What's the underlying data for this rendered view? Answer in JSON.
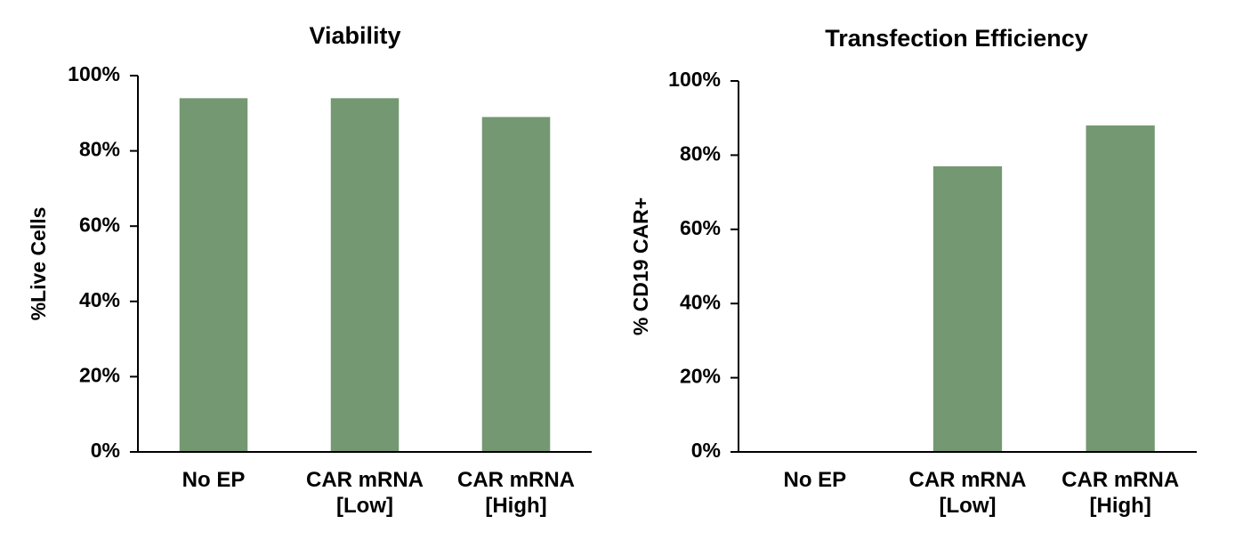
{
  "chart_data": [
    {
      "type": "bar",
      "title": "Viability",
      "y_label": "%Live Cells",
      "categories": [
        "No EP",
        "CAR mRNA\n[Low]",
        "CAR mRNA\n[High]"
      ],
      "values": [
        94,
        94,
        89
      ],
      "color": "#749872",
      "ylim": [
        0,
        100
      ],
      "yticks": [
        {
          "value": 0,
          "label": "0%"
        },
        {
          "value": 20,
          "label": "20%"
        },
        {
          "value": 40,
          "label": "40%"
        },
        {
          "value": 60,
          "label": "60%"
        },
        {
          "value": 80,
          "label": "80%"
        },
        {
          "value": 100,
          "label": "100%"
        }
      ]
    },
    {
      "type": "bar",
      "title": "Transfection Efficiency",
      "y_label": "% CD19 CAR+",
      "categories": [
        "No EP",
        "CAR mRNA\n[Low]",
        "CAR mRNA\n[High]"
      ],
      "values": [
        0,
        77,
        88
      ],
      "color": "#749872",
      "ylim": [
        0,
        100
      ],
      "yticks": [
        {
          "value": 0,
          "label": "0%"
        },
        {
          "value": 20,
          "label": "20%"
        },
        {
          "value": 40,
          "label": "40%"
        },
        {
          "value": 60,
          "label": "60%"
        },
        {
          "value": 80,
          "label": "80%"
        },
        {
          "value": 100,
          "label": "100%"
        }
      ]
    }
  ]
}
